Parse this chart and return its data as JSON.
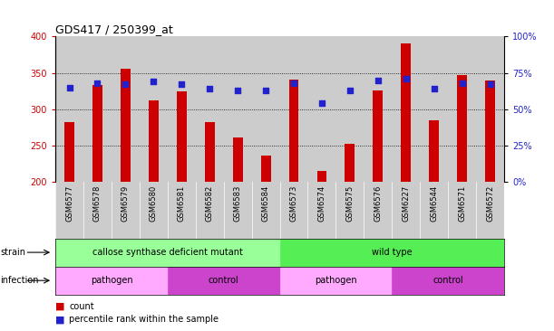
{
  "title": "GDS417 / 250399_at",
  "samples": [
    "GSM6577",
    "GSM6578",
    "GSM6579",
    "GSM6580",
    "GSM6581",
    "GSM6582",
    "GSM6583",
    "GSM6584",
    "GSM6573",
    "GSM6574",
    "GSM6575",
    "GSM6576",
    "GSM6227",
    "GSM6544",
    "GSM6571",
    "GSM6572"
  ],
  "counts": [
    282,
    333,
    356,
    312,
    324,
    282,
    261,
    237,
    341,
    215,
    253,
    326,
    390,
    285,
    347,
    340
  ],
  "percentiles": [
    65,
    68,
    67,
    69,
    67,
    64,
    63,
    63,
    68,
    54,
    63,
    70,
    71,
    64,
    68,
    67
  ],
  "bar_color": "#cc0000",
  "dot_color": "#2222cc",
  "ylim_left": [
    200,
    400
  ],
  "ylim_right": [
    0,
    100
  ],
  "yticks_left": [
    200,
    250,
    300,
    350,
    400
  ],
  "yticks_right": [
    0,
    25,
    50,
    75,
    100
  ],
  "ytick_labels_right": [
    "0%",
    "25%",
    "50%",
    "75%",
    "100%"
  ],
  "bg_col_color": "#cccccc",
  "strain_labels": [
    {
      "text": "callose synthase deficient mutant",
      "start": 0,
      "end": 8,
      "color": "#99ff99"
    },
    {
      "text": "wild type",
      "start": 8,
      "end": 16,
      "color": "#55ee55"
    }
  ],
  "infection_labels": [
    {
      "text": "pathogen",
      "start": 0,
      "end": 4,
      "color": "#ffaaff"
    },
    {
      "text": "control",
      "start": 4,
      "end": 8,
      "color": "#cc44cc"
    },
    {
      "text": "pathogen",
      "start": 8,
      "end": 12,
      "color": "#ffaaff"
    },
    {
      "text": "control",
      "start": 12,
      "end": 16,
      "color": "#cc44cc"
    }
  ],
  "left_color": "#cc0000",
  "right_color": "#2222cc",
  "bar_width": 0.35
}
